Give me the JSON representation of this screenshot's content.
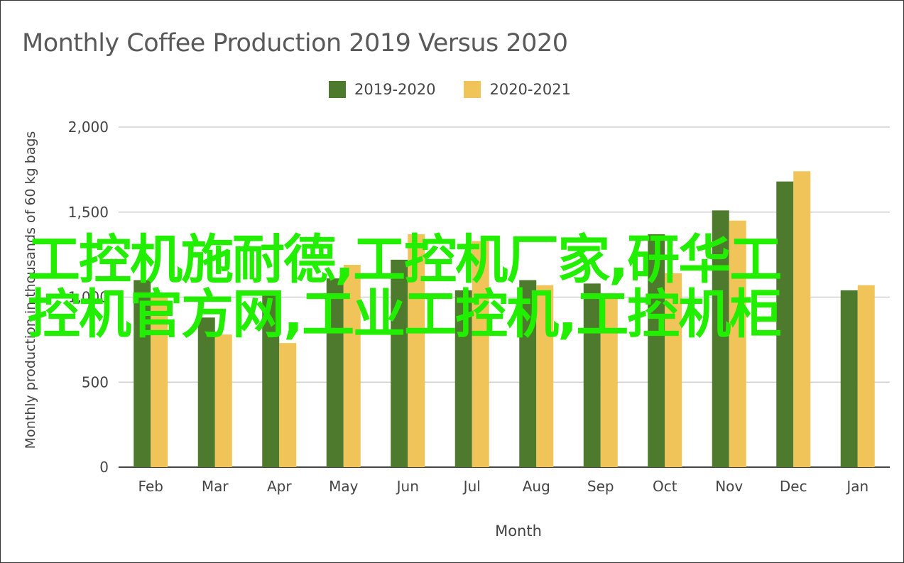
{
  "chart_data": {
    "type": "bar",
    "title": "Monthly Coffee Production 2019 Versus 2020",
    "xlabel": "Month",
    "ylabel": "Monthly production in thousands of 60 kg bags",
    "ylim": [
      0,
      2000
    ],
    "yticks": [
      "0",
      "500",
      "1,000",
      "1,500",
      "2,000"
    ],
    "grid": true,
    "legend_position": "top",
    "categories": [
      "Feb",
      "Mar",
      "Apr",
      "May",
      "Jun",
      "Jul",
      "Aug",
      "Sep",
      "Oct",
      "Nov",
      "Dec",
      "Jan"
    ],
    "series": [
      {
        "name": "2019-2020",
        "color": "#4e7a2e",
        "values": [
          1100,
          880,
          1020,
          1110,
          1220,
          1040,
          1100,
          1080,
          1370,
          1510,
          1680,
          1040
        ]
      },
      {
        "name": "2020-2021",
        "color": "#f1c45a",
        "values": [
          1000,
          780,
          730,
          1190,
          1370,
          1330,
          1070,
          1000,
          1140,
          1450,
          1740,
          1070
        ]
      }
    ]
  },
  "overlay": {
    "line1": "工控机施耐德,工控机厂家,研华工",
    "line2": "控机官方网,工业工控机,工控机柜",
    "color": "#22ee00"
  }
}
